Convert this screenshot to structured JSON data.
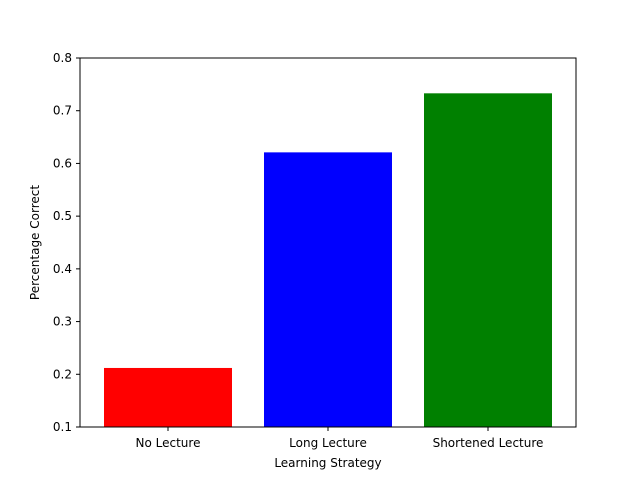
{
  "chart_data": {
    "type": "bar",
    "title": "",
    "xlabel": "Learning Strategy",
    "ylabel": "Percentage Correct",
    "categories": [
      "No Lecture",
      "Long Lecture",
      "Shortened Lecture"
    ],
    "values": [
      0.212,
      0.621,
      0.733
    ],
    "colors": [
      "#ff0000",
      "#0000ff",
      "#008000"
    ],
    "ylim": [
      0.1,
      0.8
    ],
    "yticks": [
      0.1,
      0.2,
      0.3,
      0.4,
      0.5,
      0.6,
      0.7,
      0.8
    ],
    "ytick_labels": [
      "0.1",
      "0.2",
      "0.3",
      "0.4",
      "0.5",
      "0.6",
      "0.7",
      "0.8"
    ],
    "grid": false,
    "legend": "none"
  }
}
